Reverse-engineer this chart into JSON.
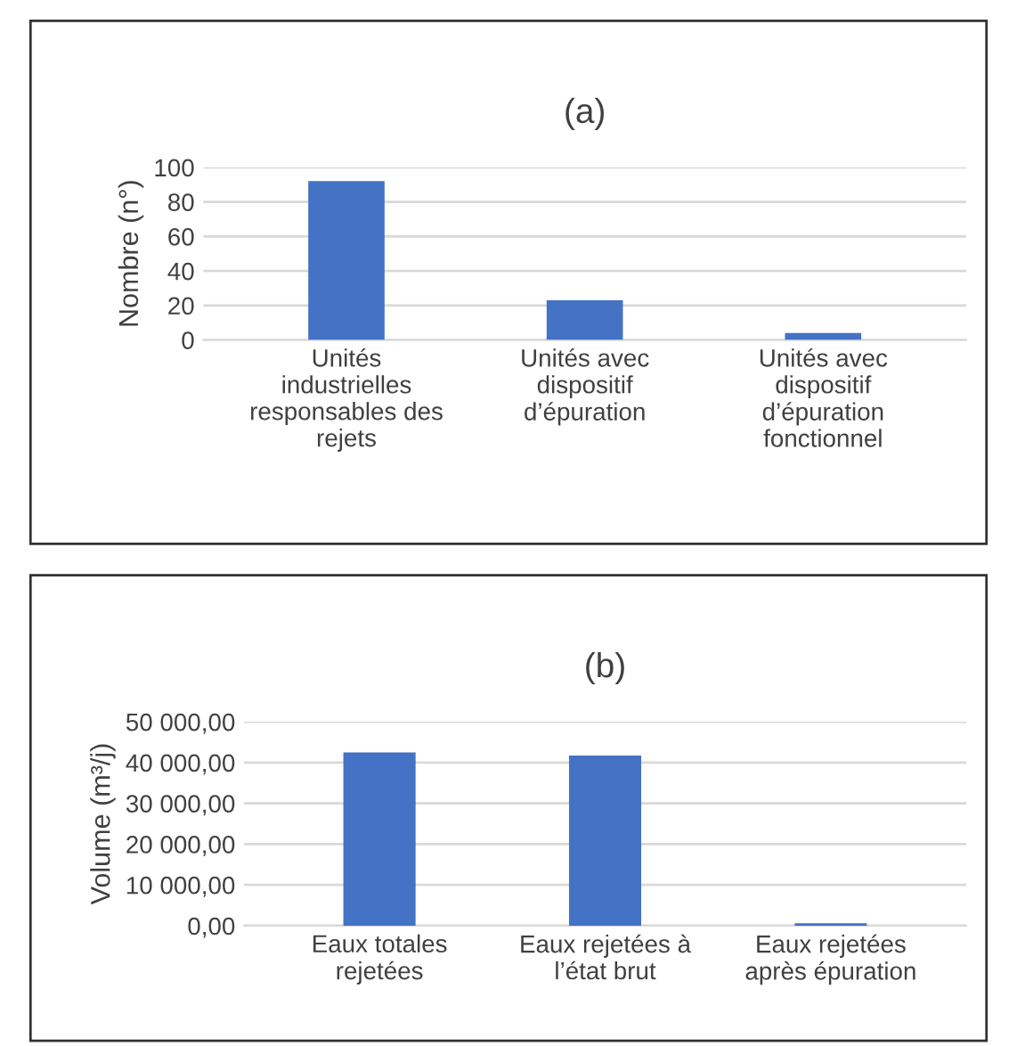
{
  "chart_data": [
    {
      "type": "bar",
      "title": "(a)",
      "ylabel": "Nombre (n°)",
      "categories": [
        "Unités industrielles responsables des rejets",
        "Unités avec dispositif d’épuration",
        "Unités avec dispositif d’épuration fonctionnel"
      ],
      "values": [
        92,
        23,
        4
      ],
      "color": "#4472c4",
      "ylim": [
        0,
        100
      ],
      "yticks": [
        0,
        20,
        40,
        60,
        80,
        100
      ],
      "grid": "y"
    },
    {
      "type": "bar",
      "title": "(b)",
      "ylabel": "Volume (m³/j)",
      "categories": [
        "Eaux totales rejetées",
        "Eaux rejetées à l’état brut",
        "Eaux rejetées après épuration"
      ],
      "values": [
        42500,
        41700,
        600
      ],
      "color": "#4472c4",
      "ylim": [
        0,
        50000
      ],
      "yticks": [
        {
          "value": 0,
          "label": "0,00"
        },
        {
          "value": 10000,
          "label": "10 000,00"
        },
        {
          "value": 20000,
          "label": "20 000,00"
        },
        {
          "value": 30000,
          "label": "30 000,00"
        },
        {
          "value": 40000,
          "label": "40 000,00"
        },
        {
          "value": 50000,
          "label": "50 000,00"
        }
      ],
      "grid": "y"
    }
  ]
}
